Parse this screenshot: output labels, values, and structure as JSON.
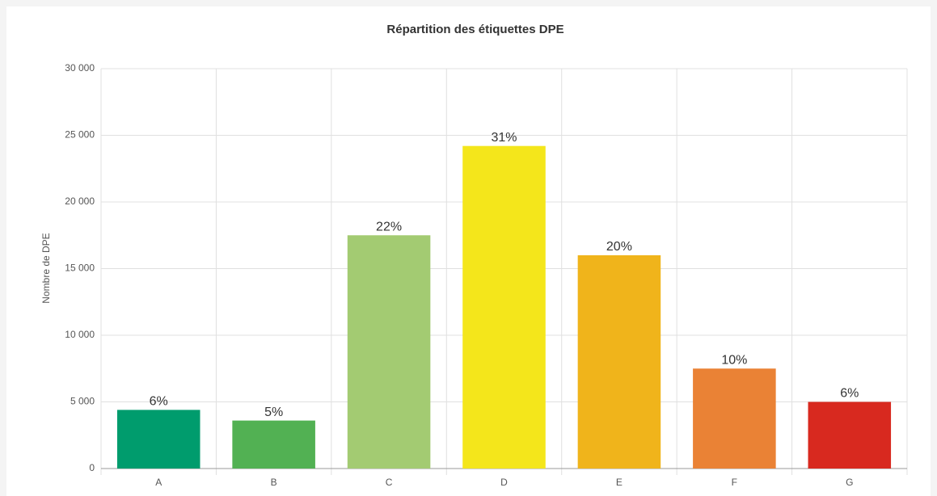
{
  "chart_data": {
    "type": "bar",
    "title": "Répartition des étiquettes DPE",
    "y_label": "Nombre de DPE",
    "categories": [
      "A",
      "B",
      "C",
      "D",
      "E",
      "F",
      "G"
    ],
    "values": [
      4400,
      3600,
      17500,
      24200,
      16000,
      7500,
      5000
    ],
    "percent_labels": [
      "6%",
      "5%",
      "22%",
      "31%",
      "20%",
      "10%",
      "6%"
    ],
    "colors": [
      "#009c6d",
      "#52b153",
      "#a3cb72",
      "#f4e61b",
      "#f0b41b",
      "#ea8235",
      "#d8291f"
    ],
    "ylim": [
      0,
      30000
    ],
    "yticks": [
      0,
      {
        "value": 5000,
        "label": "5 000"
      },
      {
        "value": 10000,
        "label": "10 000"
      },
      {
        "value": 15000,
        "label": "15 000"
      },
      {
        "value": 20000,
        "label": "20 000"
      },
      {
        "value": 25000,
        "label": "25 000"
      },
      {
        "value": 30000,
        "label": "30 000"
      }
    ],
    "grid": true
  }
}
